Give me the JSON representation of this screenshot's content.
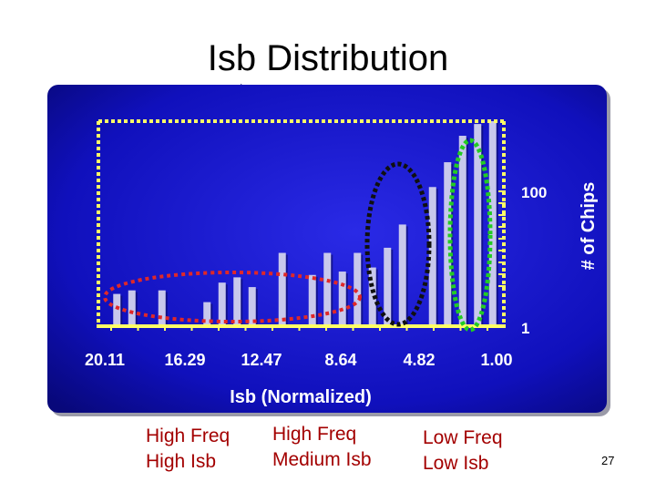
{
  "slide": {
    "title": "Isb Distribution",
    "page_number": "27",
    "captions": [
      {
        "line1": "High Freq",
        "line2": "High Isb"
      },
      {
        "line1": "High Freq",
        "line2": "Medium Isb"
      },
      {
        "line1": "Low Freq",
        "line2": "Low Isb"
      }
    ]
  },
  "chart_data": {
    "type": "bar",
    "xlabel": "Isb (Normalized)",
    "ylabel": "# of Chips",
    "yscale": "log",
    "ylim": [
      1,
      150
    ],
    "yticks": [
      "100",
      "1"
    ],
    "xticks": [
      "20.11",
      "16.29",
      "12.47",
      "8.64",
      "4.82",
      "1.00"
    ],
    "x_direction": "decreasing",
    "values": [
      2.2,
      2.4,
      0,
      2.4,
      0,
      0,
      1.8,
      2.9,
      3.3,
      2.6,
      0,
      6,
      0,
      3.5,
      6,
      3.8,
      6,
      4.2,
      6.8,
      12,
      0,
      30,
      55,
      105,
      140,
      150
    ],
    "colors": {
      "background": "#1414c8",
      "bars": "#c8c8ec",
      "axis": "#ffff66",
      "red_ring": "#e02828",
      "black_ring": "#101010",
      "green_ring": "#22cc22"
    },
    "annotations": [
      "red dotted ellipse",
      "black dotted ellipse",
      "green dotted ellipse"
    ]
  }
}
